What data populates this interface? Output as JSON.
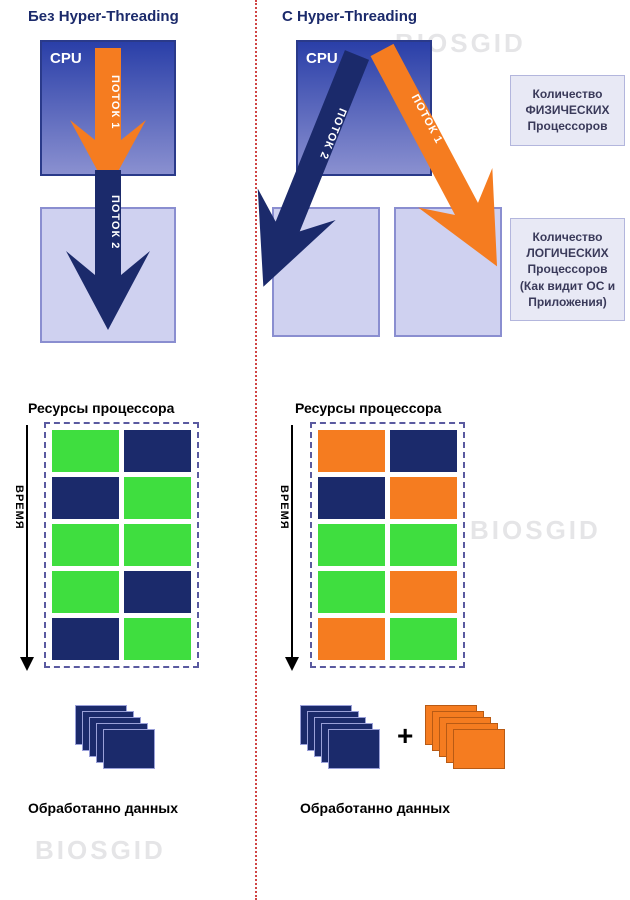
{
  "colors": {
    "navy": "#1b2a6b",
    "navy_border": "#2a3a8a",
    "orange": "#f57c20",
    "green": "#3fde3f",
    "lilac": "#cfd1f0",
    "lilac_border": "#8a8ed0",
    "divider": "#d04545",
    "side_bg": "#e8e9f5",
    "side_border": "#b3b6dd",
    "side_text": "#3a3a5a",
    "grid_border": "#5a5aa0",
    "cpu_grad_top": "#2a3fa8",
    "cpu_grad_bot": "#8a90d0"
  },
  "left": {
    "heading": "Без Hyper-Threading",
    "cpu_label": "CPU",
    "thread1": "ПОТОК 1",
    "thread2": "ПОТОК 2",
    "resources_heading": "Ресурсы процессора",
    "time_label": "ВРЕМЯ",
    "processed": "Обработанно данных",
    "grid": [
      [
        "green",
        "navy"
      ],
      [
        "navy",
        "green"
      ],
      [
        "green",
        "green"
      ],
      [
        "green",
        "navy"
      ],
      [
        "navy",
        "green"
      ]
    ]
  },
  "right": {
    "heading": "С Hyper-Threading",
    "cpu_label": "CPU",
    "thread1": "ПОТОК 1",
    "thread2": "ПОТОК 2",
    "resources_heading": "Ресурсы процессора",
    "time_label": "ВРЕМЯ",
    "processed": "Обработанно данных",
    "grid": [
      [
        "orange",
        "navy"
      ],
      [
        "navy",
        "orange"
      ],
      [
        "green",
        "green"
      ],
      [
        "green",
        "orange"
      ],
      [
        "orange",
        "green"
      ]
    ]
  },
  "side_labels": {
    "physical": "Количество ФИЗИЧЕСКИХ Процессоров",
    "logical": "Количество ЛОГИЧЕСКИХ Процессоров (Как видит ОС и Приложения)"
  },
  "watermark": "BIOSGID",
  "plus": "+"
}
